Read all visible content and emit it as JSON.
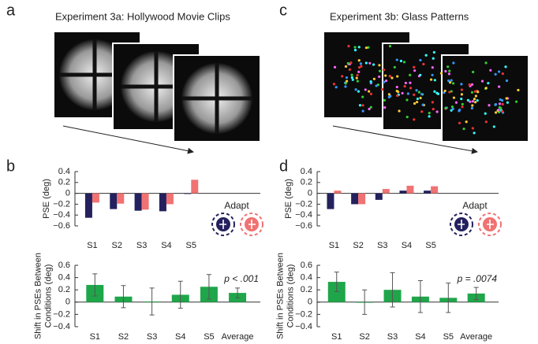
{
  "panels": {
    "labels": [
      "a",
      "b",
      "c",
      "d"
    ],
    "titles": [
      "Experiment 3a: Hollywood Movie Clips",
      "Experiment 3b: Glass Patterns"
    ]
  },
  "chart_data": [
    {
      "type": "grouped-bar",
      "ylabel": [
        "PSE (deg)"
      ],
      "categories": [
        "S1",
        "S2",
        "S3",
        "S4",
        "S5"
      ],
      "series": [
        {
          "color": "#24215e",
          "values": [
            -0.45,
            -0.29,
            -0.32,
            -0.33,
            -0.01
          ]
        },
        {
          "color": "#f07272",
          "values": [
            -0.17,
            -0.19,
            -0.3,
            -0.2,
            0.25
          ]
        }
      ],
      "legend_title": "Adapt",
      "ylim": [
        -0.6,
        0.4
      ],
      "yticks": [
        {
          "value": -0.6,
          "label": "−0.6"
        },
        {
          "value": -0.4,
          "label": "−0.4"
        },
        {
          "value": -0.2,
          "label": "−0.2"
        },
        0,
        0.2,
        0.4
      ]
    },
    {
      "type": "error-bar",
      "ylabel": [
        "Shift in PSEs Between",
        "Conditions (deg)"
      ],
      "categories": [
        "S1",
        "S2",
        "S3",
        "S4",
        "S5",
        "Average"
      ],
      "color": "#1fa64a",
      "values": [
        0.28,
        0.09,
        0.01,
        0.12,
        0.25,
        0.15
      ],
      "errors": [
        0.18,
        0.18,
        0.22,
        0.22,
        0.2,
        0.08
      ],
      "annotation": "p < .001",
      "ylim": [
        -0.4,
        0.6
      ],
      "yticks": [
        {
          "value": -0.4,
          "label": "−0.4"
        },
        {
          "value": -0.2,
          "label": "−0.2"
        },
        0,
        0.2,
        0.4,
        0.6
      ]
    },
    {
      "type": "grouped-bar",
      "ylabel": [
        "PSE (deg)"
      ],
      "categories": [
        "S1",
        "S2",
        "S3",
        "S4",
        "S5"
      ],
      "series": [
        {
          "color": "#24215e",
          "values": [
            -0.29,
            -0.2,
            -0.12,
            0.05,
            0.05
          ]
        },
        {
          "color": "#f07272",
          "values": [
            0.05,
            -0.2,
            0.08,
            0.14,
            0.13
          ]
        }
      ],
      "legend_title": "Adapt",
      "ylim": [
        -0.6,
        0.4
      ],
      "yticks": [
        {
          "value": -0.6,
          "label": "−0.6"
        },
        {
          "value": -0.4,
          "label": "−0.4"
        },
        {
          "value": -0.2,
          "label": "−0.2"
        },
        0,
        0.2,
        0.4
      ]
    },
    {
      "type": "error-bar",
      "ylabel": [
        "Shift in PSEs Between",
        "Conditions (deg)"
      ],
      "categories": [
        "S1",
        "S2",
        "S3",
        "S4",
        "S5",
        "Average"
      ],
      "color": "#1fa64a",
      "values": [
        0.33,
        0.0,
        0.2,
        0.09,
        0.07,
        0.14
      ],
      "errors": [
        0.16,
        0.2,
        0.28,
        0.26,
        0.24,
        0.1
      ],
      "annotation": "p = .0074",
      "ylim": [
        -0.4,
        0.6
      ],
      "yticks": [
        {
          "value": -0.4,
          "label": "−0.4"
        },
        {
          "value": -0.2,
          "label": "−0.2"
        },
        0,
        0.2,
        0.4,
        0.6
      ]
    }
  ]
}
